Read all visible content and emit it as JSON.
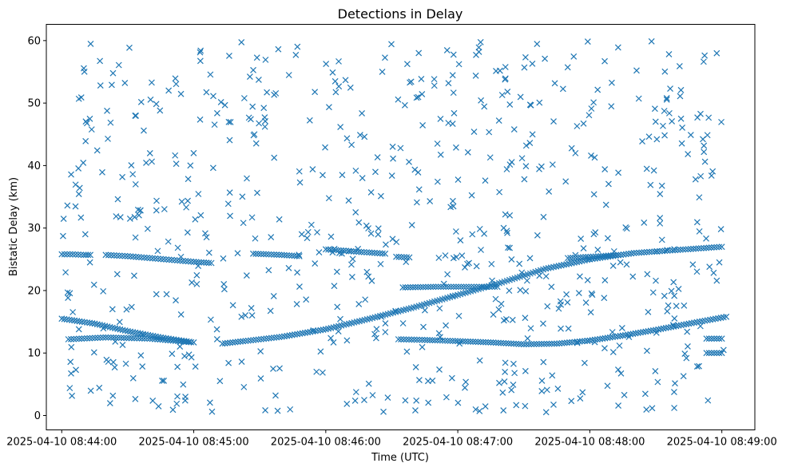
{
  "chart_data": {
    "type": "scatter",
    "title": "Detections in Delay",
    "xlabel": "Time (UTC)",
    "ylabel": "Bistatic Delay (km)",
    "marker": "x",
    "color": "#1f77b4",
    "x_ticks": [
      "2025-04-10 08:44:00",
      "2025-04-10 08:45:00",
      "2025-04-10 08:46:00",
      "2025-04-10 08:47:00",
      "2025-04-10 08:48:00",
      "2025-04-10 08:49:00"
    ],
    "y_ticks": [
      "0",
      "10",
      "20",
      "30",
      "40",
      "50",
      "60"
    ],
    "xlim": [
      "2025-04-10 08:43:53",
      "2025-04-10 08:49:15"
    ],
    "ylim": [
      -2.3,
      62.6
    ],
    "grid": false,
    "tracks": [
      {
        "times": [
          "08:44:00",
          "08:44:05",
          "08:44:10",
          "08:44:13"
        ],
        "delay": [
          25.8,
          25.8,
          25.7,
          25.7
        ]
      },
      {
        "times": [
          "08:44:20",
          "08:44:30",
          "08:44:40",
          "08:44:50",
          "08:45:00",
          "08:45:08"
        ],
        "delay": [
          25.7,
          25.5,
          25.2,
          24.9,
          24.6,
          24.4
        ]
      },
      {
        "times": [
          "08:45:27",
          "08:45:40",
          "08:45:48"
        ],
        "delay": [
          25.9,
          25.7,
          25.5
        ]
      },
      {
        "times": [
          "08:46:00",
          "08:46:15",
          "08:46:27"
        ],
        "delay": [
          26.6,
          26.2,
          25.9
        ]
      },
      {
        "times": [
          "08:46:32",
          "08:46:38"
        ],
        "delay": [
          25.4,
          25.3
        ]
      },
      {
        "times": [
          "08:47:50",
          "08:48:05",
          "08:48:13"
        ],
        "delay": [
          25.2,
          25.5,
          25.7
        ]
      },
      {
        "times": [
          "08:44:00",
          "08:44:15",
          "08:44:30",
          "08:44:45",
          "08:44:58"
        ],
        "delay": [
          15.5,
          14.7,
          13.5,
          12.5,
          11.8
        ]
      },
      {
        "times": [
          "08:44:03",
          "08:44:20",
          "08:44:40",
          "08:45:00"
        ],
        "delay": [
          12.2,
          12.5,
          12.3,
          11.7
        ]
      },
      {
        "times": [
          "08:45:13",
          "08:45:40",
          "08:46:00",
          "08:46:20",
          "08:46:40",
          "08:47:00",
          "08:47:20",
          "08:47:40",
          "08:48:00",
          "08:48:20",
          "08:48:40",
          "08:49:00"
        ],
        "delay": [
          11.5,
          12.6,
          13.8,
          15.5,
          17.3,
          19.3,
          21.3,
          23.5,
          25.0,
          26.0,
          26.5,
          27.0
        ]
      },
      {
        "times": [
          "08:46:33",
          "08:46:45",
          "08:47:00",
          "08:47:15",
          "08:47:30",
          "08:47:45",
          "08:48:00",
          "08:48:15",
          "08:48:30",
          "08:48:45",
          "08:49:02"
        ],
        "delay": [
          12.2,
          12.1,
          11.9,
          11.7,
          11.4,
          11.5,
          12.0,
          12.8,
          13.7,
          14.7,
          15.8
        ]
      },
      {
        "times": [
          "08:46:35",
          "08:46:50",
          "08:47:05",
          "08:47:18"
        ],
        "delay": [
          20.5,
          20.6,
          20.6,
          20.6
        ]
      },
      {
        "times": [
          "08:48:53",
          "08:49:00"
        ],
        "delay": [
          12.3,
          12.3
        ]
      },
      {
        "times": [
          "08:48:53",
          "08:49:00"
        ],
        "delay": [
          10.0,
          10.0
        ]
      }
    ]
  }
}
